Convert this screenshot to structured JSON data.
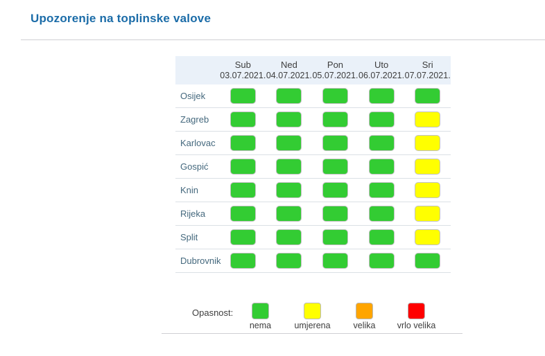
{
  "page": {
    "title": "Upozorenje na toplinske valove"
  },
  "chart_data": {
    "type": "heatmap",
    "title": "Upozorenje na toplinske valove",
    "columns": [
      {
        "day": "Sub",
        "date": "03.07.2021."
      },
      {
        "day": "Ned",
        "date": "04.07.2021."
      },
      {
        "day": "Pon",
        "date": "05.07.2021."
      },
      {
        "day": "Uto",
        "date": "06.07.2021."
      },
      {
        "day": "Sri",
        "date": "07.07.2021."
      }
    ],
    "rows": [
      {
        "city": "Osijek",
        "levels": [
          "nema",
          "nema",
          "nema",
          "nema",
          "nema"
        ]
      },
      {
        "city": "Zagreb",
        "levels": [
          "nema",
          "nema",
          "nema",
          "nema",
          "umjerena"
        ]
      },
      {
        "city": "Karlovac",
        "levels": [
          "nema",
          "nema",
          "nema",
          "nema",
          "umjerena"
        ]
      },
      {
        "city": "Gospić",
        "levels": [
          "nema",
          "nema",
          "nema",
          "nema",
          "umjerena"
        ]
      },
      {
        "city": "Knin",
        "levels": [
          "nema",
          "nema",
          "nema",
          "nema",
          "umjerena"
        ]
      },
      {
        "city": "Rijeka",
        "levels": [
          "nema",
          "nema",
          "nema",
          "nema",
          "umjerena"
        ]
      },
      {
        "city": "Split",
        "levels": [
          "nema",
          "nema",
          "nema",
          "nema",
          "umjerena"
        ]
      },
      {
        "city": "Dubrovnik",
        "levels": [
          "nema",
          "nema",
          "nema",
          "nema",
          "nema"
        ]
      }
    ],
    "level_colors": {
      "nema": "#33cc33",
      "umjerena": "#ffff00",
      "velika": "#ffa500",
      "vrlo velika": "#ff0000"
    },
    "legend": {
      "label": "Opasnost:",
      "position": "bottom",
      "items": [
        {
          "label": "nema",
          "color": "#33cc33"
        },
        {
          "label": "umjerena",
          "color": "#ffff00"
        },
        {
          "label": "velika",
          "color": "#ffa500"
        },
        {
          "label": "vrlo velika",
          "color": "#ff0000"
        }
      ]
    }
  },
  "colors": {
    "title_text": "#1b6ca8",
    "header_bg": "#eaf1f9",
    "header_text": "#3d3d3d",
    "city_text": "#44687d",
    "row_divider": "#dbe0e5",
    "section_divider": "#cfcfd4",
    "cell_border": "#c0c0c0"
  }
}
